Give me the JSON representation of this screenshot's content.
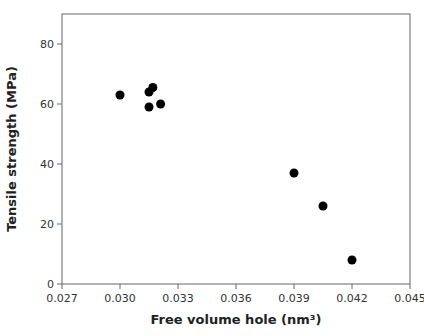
{
  "chart_data": {
    "type": "scatter",
    "xlabel": "Free volume hole (nm³)",
    "ylabel": "Tensile strength (MPa)",
    "x": [
      0.03,
      0.0315,
      0.0317,
      0.0321,
      0.0315,
      0.039,
      0.0405,
      0.042
    ],
    "y": [
      63,
      64,
      65.5,
      60,
      59,
      37,
      26,
      8
    ],
    "marker": "circle",
    "color": "black",
    "xlim": [
      0.027,
      0.045
    ],
    "ylim": [
      0,
      90
    ],
    "xticks": [
      0.027,
      {
        "value": 0.03,
        "label": "0.030"
      },
      0.033,
      0.036,
      0.039,
      0.042,
      0.045
    ],
    "yticks": [
      0,
      20,
      40,
      60,
      80
    ]
  }
}
